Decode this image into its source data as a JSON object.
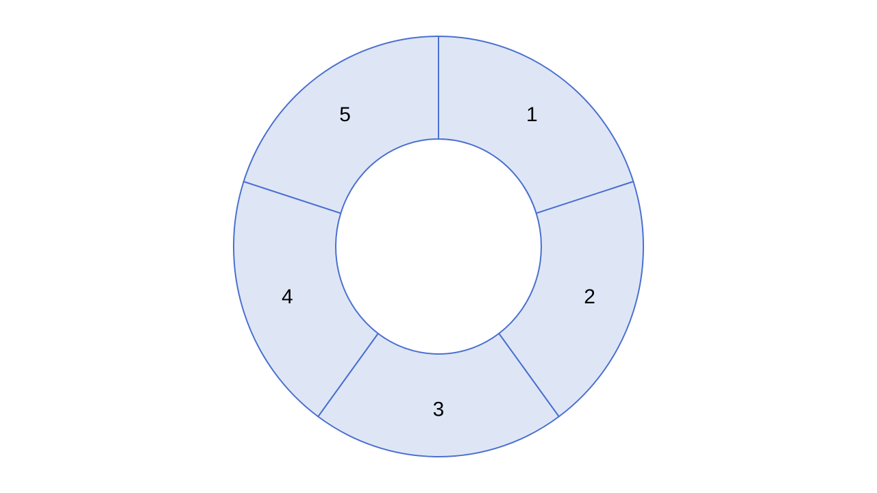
{
  "diagram": {
    "type": "donut-cycle",
    "segments": [
      {
        "label": "1"
      },
      {
        "label": "2"
      },
      {
        "label": "3"
      },
      {
        "label": "4"
      },
      {
        "label": "5"
      }
    ],
    "colors": {
      "fill": "#dee6f6",
      "stroke": "#4a6fcf",
      "background": "#ffffff",
      "text": "#000000"
    }
  }
}
